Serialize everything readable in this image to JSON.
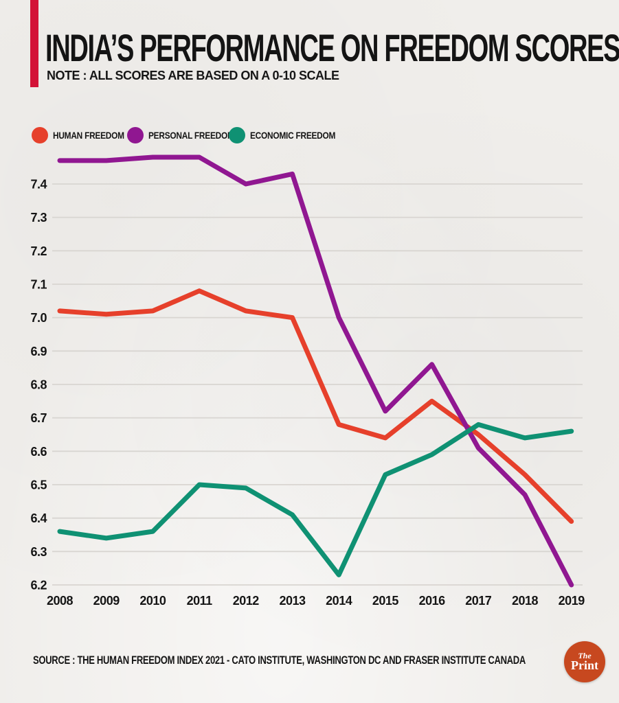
{
  "header": {
    "title": "INDIA’S PERFORMANCE ON FREEDOM SCORES",
    "note": "NOTE : ALL SCORES ARE BASED ON A 0-10 SCALE",
    "accent_color": "#D31337"
  },
  "chart_data": {
    "type": "line",
    "x": [
      2008,
      2009,
      2010,
      2011,
      2012,
      2013,
      2014,
      2015,
      2016,
      2017,
      2018,
      2019
    ],
    "series": [
      {
        "name": "HUMAN FREEDOM",
        "color": "#E6402B",
        "values": [
          7.02,
          7.01,
          7.02,
          7.08,
          7.02,
          7.0,
          6.68,
          6.64,
          6.75,
          6.65,
          6.53,
          6.39
        ]
      },
      {
        "name": "PERSONAL FREEDOM",
        "color": "#901791",
        "values": [
          7.47,
          7.47,
          7.48,
          7.48,
          7.4,
          7.43,
          7.0,
          6.72,
          6.86,
          6.61,
          6.47,
          6.2
        ]
      },
      {
        "name": "ECONOMIC FREEDOM",
        "color": "#0F9173",
        "values": [
          6.36,
          6.34,
          6.36,
          6.5,
          6.49,
          6.41,
          6.23,
          6.53,
          6.59,
          6.68,
          6.64,
          6.66
        ]
      }
    ],
    "title": "INDIA’S PERFORMANCE ON FREEDOM SCORES",
    "xlabel": "",
    "ylabel": "",
    "ylim": [
      6.2,
      7.52
    ],
    "yticks": [
      6.2,
      6.3,
      6.4,
      6.5,
      6.6,
      6.7,
      6.8,
      6.9,
      7.0,
      7.1,
      7.2,
      7.3,
      7.4
    ],
    "grid": true,
    "grid_color": "#d8d5d1",
    "tick_color": "#151515",
    "legend_position": "top-left"
  },
  "footer": {
    "source": "SOURCE : THE HUMAN FREEDOM INDEX 2021 - CATO INSTITUTE, WASHINGTON DC AND FRASER INSTITUTE CANADA",
    "logo": {
      "line1": "The",
      "line2": "Print",
      "color": "#C7481F"
    }
  }
}
